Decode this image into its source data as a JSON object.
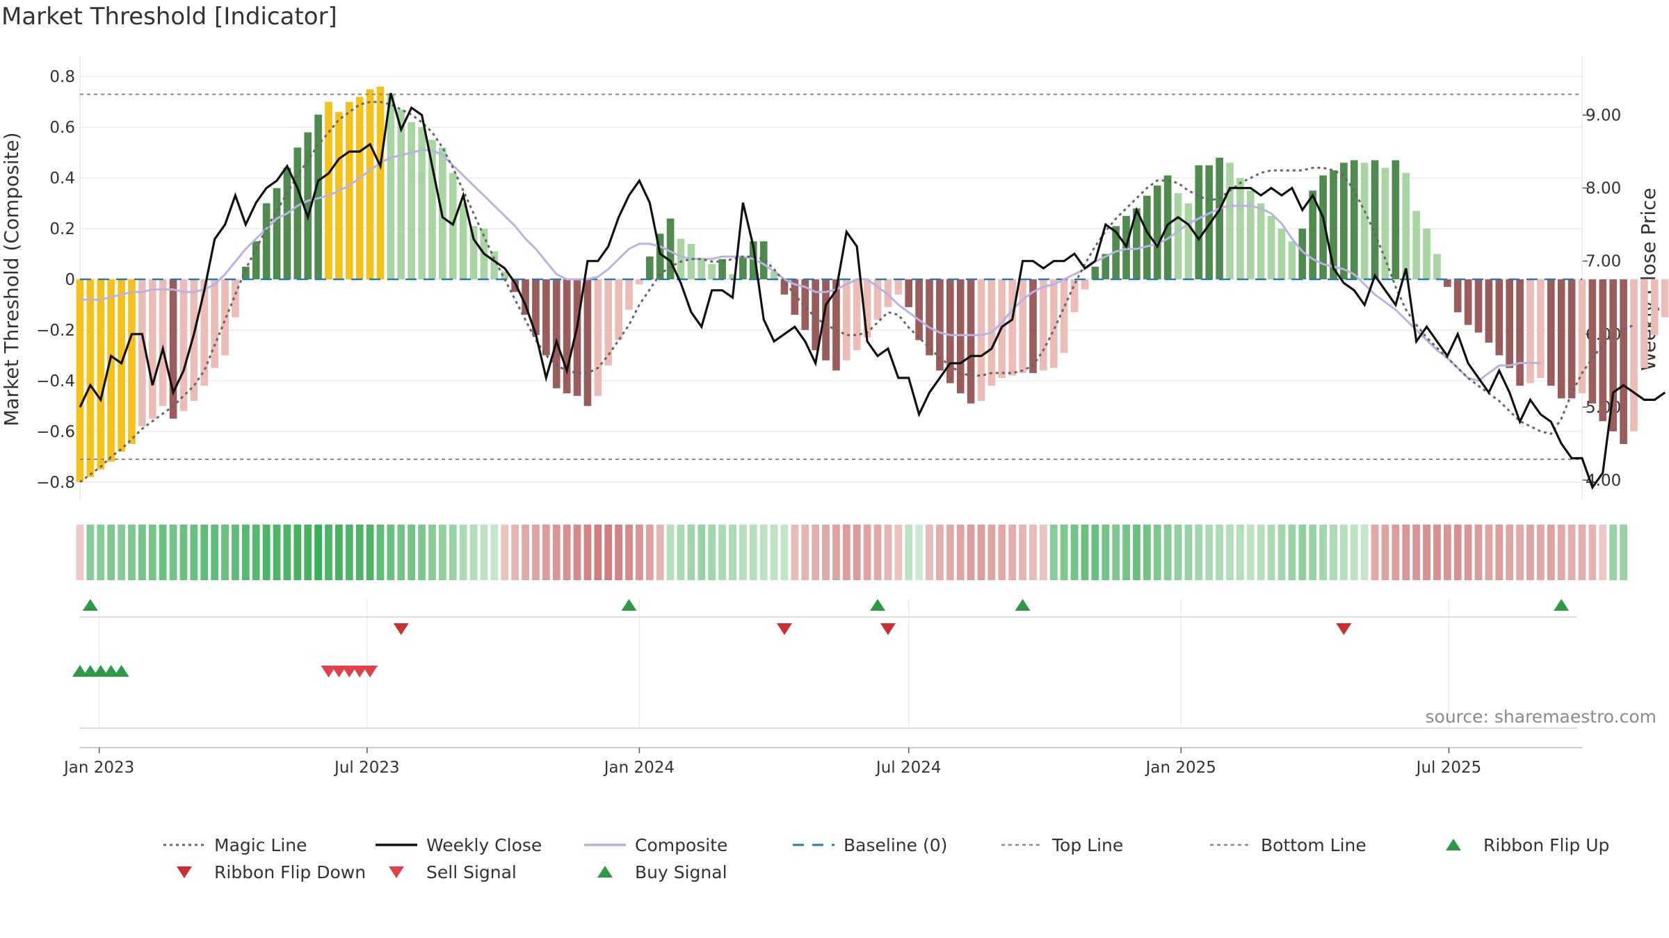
{
  "title": "Market Threshold [Indicator]",
  "source": "source: sharemaestro.com",
  "colors": {
    "background": "#ffffff",
    "grid": "#ececec",
    "yellow": "#f5c21b",
    "green_dark": "#4f8a4f",
    "green_light": "#a8d5a2",
    "red_dark": "#9b5c5c",
    "red_light": "#ecbdb7",
    "magic": "#666666",
    "close": "#111111",
    "composite": "#b9b3e3",
    "baseline": "#2a7ab0",
    "guide": "#888888",
    "flip_up": "#2e9a48",
    "flip_down": "#cc2f2f",
    "sell": "#e0404a",
    "buy": "#2e9a48"
  },
  "chart_data": {
    "type": "bar",
    "title": "Market Threshold [Indicator]",
    "ylabel_left": "Market Threshold (Composite)",
    "ylabel_right": "Weekly Close Price",
    "ylim_left": [
      -0.85,
      0.85
    ],
    "ylim_right": [
      3.8,
      9.7
    ],
    "yticks_left": [
      0.8,
      0.6,
      0.4,
      0.2,
      0,
      -0.2,
      -0.4,
      -0.6,
      -0.8
    ],
    "ytick_labels_left": [
      "0.8",
      "0.6",
      "0.4",
      "0.2",
      "0",
      "−0.2",
      "−0.4",
      "−0.6",
      "−0.8"
    ],
    "yticks_right": [
      9.0,
      8.0,
      7.0,
      6.0,
      5.0,
      4.0
    ],
    "ytick_labels_right": [
      "9.00",
      "8.00",
      "7.00",
      "6.00",
      "5.00",
      "4.00"
    ],
    "x_range": [
      "2022-12-19",
      "2025-09-29"
    ],
    "x_ticks": [
      "2023-01-01",
      "2023-07-01",
      "2024-01-01",
      "2024-07-01",
      "2025-01-01",
      "2025-07-01"
    ],
    "x_tick_labels": [
      "Jan 2023",
      "Jul 2023",
      "Jan 2024",
      "Jul 2024",
      "Jan 2025",
      "Jul 2025"
    ],
    "grid": true,
    "legend_position": "bottom",
    "top_line": 0.73,
    "bottom_line": -0.71,
    "baseline": 0,
    "series": [
      {
        "name": "Composite bars",
        "start": "2022-12-19",
        "interval": "weekly",
        "values": [
          -0.8,
          -0.78,
          -0.75,
          -0.72,
          -0.68,
          -0.65,
          -0.58,
          -0.55,
          -0.5,
          -0.55,
          -0.52,
          -0.48,
          -0.42,
          -0.35,
          -0.3,
          -0.15,
          0.05,
          0.15,
          0.3,
          0.36,
          0.44,
          0.52,
          0.58,
          0.65,
          0.7,
          0.66,
          0.7,
          0.72,
          0.75,
          0.76,
          0.73,
          0.67,
          0.62,
          0.6,
          0.55,
          0.52,
          0.42,
          0.3,
          0.21,
          0.2,
          0.11,
          0.03,
          -0.05,
          -0.14,
          -0.22,
          -0.3,
          -0.43,
          -0.45,
          -0.46,
          -0.5,
          -0.46,
          -0.34,
          -0.24,
          -0.12,
          -0.02,
          0.09,
          0.18,
          0.24,
          0.16,
          0.14,
          0.08,
          0.06,
          0.08,
          0.02,
          0.09,
          0.15,
          0.15,
          0.03,
          -0.06,
          -0.14,
          -0.2,
          -0.28,
          -0.32,
          -0.36,
          -0.32,
          -0.28,
          -0.23,
          -0.16,
          -0.11,
          -0.06,
          -0.11,
          -0.24,
          -0.3,
          -0.36,
          -0.41,
          -0.45,
          -0.49,
          -0.48,
          -0.42,
          -0.39,
          -0.38,
          -0.37,
          -0.37,
          -0.36,
          -0.35,
          -0.29,
          -0.13,
          -0.04,
          0.05,
          0.1,
          0.21,
          0.25,
          0.28,
          0.33,
          0.37,
          0.41,
          0.34,
          0.3,
          0.45,
          0.45,
          0.48,
          0.46,
          0.4,
          0.35,
          0.3,
          0.25,
          0.2,
          0.15,
          0.2,
          0.35,
          0.41,
          0.43,
          0.46,
          0.47,
          0.46,
          0.47,
          0.44,
          0.47,
          0.42,
          0.27,
          0.2,
          0.1,
          -0.03,
          -0.13,
          -0.18,
          -0.21,
          -0.25,
          -0.3,
          -0.35,
          -0.42,
          -0.41,
          -0.39,
          -0.42,
          -0.47,
          -0.47,
          -0.45,
          -0.49,
          -0.56,
          -0.6,
          -0.65,
          -0.6,
          -0.35,
          -0.22,
          -0.15,
          -0.12,
          -0.17,
          -0.18,
          -0.12
        ]
      },
      {
        "name": "Weekly Close",
        "start": "2022-12-19",
        "interval": "weekly",
        "values": [
          5.0,
          5.3,
          5.1,
          5.7,
          5.6,
          6.0,
          6.0,
          5.3,
          5.8,
          5.2,
          5.5,
          6.0,
          6.6,
          7.3,
          7.5,
          7.9,
          7.5,
          7.8,
          8.0,
          8.1,
          8.3,
          8.0,
          7.6,
          8.1,
          8.2,
          8.4,
          8.5,
          8.5,
          8.6,
          8.3,
          9.3,
          8.8,
          9.1,
          9.0,
          8.3,
          7.6,
          7.5,
          7.9,
          7.3,
          7.1,
          7.0,
          6.9,
          6.7,
          6.4,
          6.0,
          5.4,
          5.9,
          5.5,
          6.1,
          7.0,
          7.0,
          7.2,
          7.6,
          7.9,
          8.1,
          7.8,
          7.1,
          7.0,
          6.7,
          6.3,
          6.1,
          6.6,
          6.6,
          6.5,
          7.8,
          7.2,
          6.2,
          5.9,
          6.0,
          6.1,
          5.9,
          5.6,
          6.4,
          6.6,
          7.4,
          7.2,
          5.9,
          5.7,
          5.8,
          5.4,
          5.4,
          4.9,
          5.2,
          5.4,
          5.6,
          5.6,
          5.7,
          5.7,
          5.8,
          6.1,
          6.2,
          7.0,
          7.0,
          6.9,
          7.0,
          7.0,
          7.1,
          6.9,
          7.0,
          7.5,
          7.4,
          7.2,
          7.7,
          7.4,
          7.2,
          7.5,
          7.6,
          7.5,
          7.3,
          7.5,
          7.7,
          8.0,
          8.0,
          8.0,
          7.9,
          8.0,
          7.9,
          8.0,
          7.7,
          7.9,
          7.6,
          6.9,
          6.7,
          6.6,
          6.4,
          6.8,
          6.6,
          6.4,
          6.9,
          5.9,
          6.1,
          5.9,
          5.7,
          6.0,
          5.6,
          5.4,
          5.2,
          5.5,
          5.2,
          4.8,
          5.1,
          4.9,
          4.8,
          4.5,
          4.3,
          4.3,
          3.9,
          4.1,
          5.2,
          5.3,
          5.2,
          5.1,
          5.1,
          5.2
        ]
      },
      {
        "name": "Magic Line",
        "start": "2022-12-19",
        "interval": "weekly",
        "values": [
          -0.8,
          -0.77,
          -0.74,
          -0.7,
          -0.67,
          -0.63,
          -0.59,
          -0.56,
          -0.53,
          -0.5,
          -0.46,
          -0.42,
          -0.36,
          -0.26,
          -0.16,
          -0.06,
          0.04,
          0.12,
          0.2,
          0.27,
          0.34,
          0.41,
          0.47,
          0.53,
          0.58,
          0.63,
          0.66,
          0.69,
          0.7,
          0.7,
          0.69,
          0.67,
          0.65,
          0.62,
          0.58,
          0.52,
          0.44,
          0.35,
          0.26,
          0.17,
          0.08,
          0.0,
          -0.08,
          -0.16,
          -0.24,
          -0.3,
          -0.34,
          -0.36,
          -0.37,
          -0.37,
          -0.35,
          -0.3,
          -0.24,
          -0.18,
          -0.1,
          -0.04,
          0.02,
          0.05,
          0.07,
          0.08,
          0.08,
          0.07,
          0.07,
          0.08,
          0.09,
          0.09,
          0.08,
          0.04,
          -0.01,
          -0.06,
          -0.11,
          -0.15,
          -0.18,
          -0.2,
          -0.22,
          -0.22,
          -0.21,
          -0.17,
          -0.13,
          -0.14,
          -0.19,
          -0.23,
          -0.27,
          -0.31,
          -0.34,
          -0.37,
          -0.38,
          -0.38,
          -0.37,
          -0.37,
          -0.37,
          -0.36,
          -0.34,
          -0.28,
          -0.2,
          -0.11,
          -0.02,
          0.06,
          0.13,
          0.19,
          0.24,
          0.28,
          0.32,
          0.36,
          0.39,
          0.39,
          0.38,
          0.35,
          0.33,
          0.31,
          0.32,
          0.35,
          0.38,
          0.4,
          0.42,
          0.43,
          0.43,
          0.43,
          0.43,
          0.44,
          0.44,
          0.43,
          0.41,
          0.35,
          0.27,
          0.18,
          0.08,
          -0.03,
          -0.12,
          -0.18,
          -0.23,
          -0.27,
          -0.31,
          -0.35,
          -0.39,
          -0.42,
          -0.45,
          -0.48,
          -0.52,
          -0.56,
          -0.58,
          -0.6,
          -0.61,
          -0.55,
          -0.45,
          -0.37,
          -0.31,
          -0.26,
          -0.22,
          -0.2,
          -0.18
        ]
      },
      {
        "name": "Composite",
        "start": "2022-12-19",
        "interval": "weekly",
        "values": [
          -0.08,
          -0.08,
          -0.08,
          -0.07,
          -0.06,
          -0.05,
          -0.05,
          -0.04,
          -0.04,
          -0.04,
          -0.05,
          -0.05,
          -0.04,
          -0.02,
          0.02,
          0.07,
          0.12,
          0.16,
          0.2,
          0.24,
          0.26,
          0.29,
          0.31,
          0.32,
          0.33,
          0.35,
          0.37,
          0.4,
          0.43,
          0.46,
          0.48,
          0.49,
          0.5,
          0.51,
          0.51,
          0.49,
          0.45,
          0.41,
          0.37,
          0.33,
          0.29,
          0.25,
          0.21,
          0.16,
          0.12,
          0.07,
          0.02,
          0.0,
          0.0,
          0.0,
          0.01,
          0.04,
          0.08,
          0.12,
          0.14,
          0.14,
          0.13,
          0.11,
          0.09,
          0.08,
          0.08,
          0.08,
          0.09,
          0.09,
          0.09,
          0.08,
          0.06,
          0.03,
          0.0,
          -0.02,
          -0.03,
          -0.05,
          -0.05,
          -0.04,
          -0.02,
          0.0,
          0.0,
          -0.03,
          -0.06,
          -0.1,
          -0.13,
          -0.16,
          -0.19,
          -0.21,
          -0.22,
          -0.22,
          -0.22,
          -0.22,
          -0.21,
          -0.17,
          -0.12,
          -0.08,
          -0.05,
          -0.03,
          -0.02,
          0.0,
          0.02,
          0.04,
          0.07,
          0.09,
          0.11,
          0.12,
          0.12,
          0.13,
          0.14,
          0.16,
          0.19,
          0.22,
          0.24,
          0.26,
          0.28,
          0.29,
          0.29,
          0.29,
          0.28,
          0.26,
          0.22,
          0.16,
          0.11,
          0.08,
          0.06,
          0.05,
          0.04,
          0.02,
          -0.02,
          -0.06,
          -0.09,
          -0.12,
          -0.16,
          -0.2,
          -0.24,
          -0.28,
          -0.31,
          -0.35,
          -0.39,
          -0.4,
          -0.37,
          -0.34,
          -0.34,
          -0.33,
          -0.33,
          -0.33
        ]
      }
    ],
    "ribbon": {
      "start": "2022-12-19",
      "interval": "weekly",
      "values": [
        -0.2,
        0.55,
        0.55,
        0.6,
        0.55,
        0.6,
        0.65,
        0.65,
        0.7,
        0.65,
        0.7,
        0.7,
        0.75,
        0.75,
        0.7,
        0.75,
        0.8,
        0.8,
        0.85,
        0.85,
        0.85,
        0.9,
        0.9,
        0.95,
        0.85,
        0.9,
        0.85,
        0.85,
        0.85,
        0.75,
        0.7,
        0.65,
        0.65,
        0.6,
        0.55,
        0.5,
        0.45,
        0.35,
        0.3,
        0.25,
        0.2,
        -0.25,
        -0.35,
        -0.45,
        -0.5,
        -0.55,
        -0.6,
        -0.65,
        -0.7,
        -0.75,
        -0.8,
        -0.8,
        -0.75,
        -0.7,
        -0.6,
        -0.5,
        -0.35,
        0.3,
        0.35,
        0.4,
        0.45,
        0.4,
        0.35,
        0.35,
        0.3,
        0.3,
        0.25,
        0.25,
        0.2,
        -0.3,
        -0.35,
        -0.4,
        -0.45,
        -0.5,
        -0.55,
        -0.55,
        -0.5,
        -0.45,
        -0.35,
        -0.25,
        0.25,
        0.15,
        -0.3,
        -0.4,
        -0.45,
        -0.5,
        -0.55,
        -0.55,
        -0.5,
        -0.45,
        -0.4,
        -0.35,
        -0.3,
        -0.25,
        0.55,
        0.6,
        0.65,
        0.7,
        0.7,
        0.65,
        0.6,
        0.65,
        0.7,
        0.65,
        0.6,
        0.55,
        0.5,
        0.45,
        0.4,
        0.35,
        0.35,
        0.3,
        0.3,
        0.25,
        0.3,
        0.35,
        0.4,
        0.45,
        0.5,
        0.45,
        0.4,
        0.35,
        0.3,
        0.25,
        0.2,
        -0.45,
        -0.5,
        -0.55,
        -0.6,
        -0.6,
        -0.65,
        -0.65,
        -0.6,
        -0.65,
        -0.6,
        -0.55,
        -0.5,
        -0.55,
        -0.5,
        -0.45,
        -0.5,
        -0.45,
        -0.5,
        -0.45,
        -0.4,
        -0.4,
        -0.35,
        -0.2,
        0.45,
        0.45
      ]
    },
    "markers": {
      "ribbon_flip_up": [
        "2022-12-26",
        "2023-12-25",
        "2024-06-10",
        "2024-09-16",
        "2025-09-15"
      ],
      "ribbon_flip_down": [
        "2023-07-24",
        "2024-04-08",
        "2024-06-17",
        "2025-04-21"
      ],
      "buy_signal": [
        "2022-12-19",
        "2022-12-26",
        "2023-01-02",
        "2023-01-09",
        "2023-01-16"
      ],
      "sell_signal": [
        "2023-06-05",
        "2023-06-12",
        "2023-06-19",
        "2023-06-26",
        "2023-07-03"
      ]
    }
  },
  "legend": [
    {
      "label": "Magic Line",
      "kind": "dotted",
      "color": "#666666"
    },
    {
      "label": "Weekly Close",
      "kind": "solid",
      "color": "#111111"
    },
    {
      "label": "Composite",
      "kind": "solid-light",
      "color": "#b9b3e3"
    },
    {
      "label": "Baseline (0)",
      "kind": "dashed",
      "color": "#2a7ab0"
    },
    {
      "label": "Top Line",
      "kind": "dashed-grey",
      "color": "#888888"
    },
    {
      "label": "Bottom Line",
      "kind": "dashed-grey",
      "color": "#888888"
    },
    {
      "label": "Ribbon Flip Up",
      "kind": "tri-up",
      "color": "#2e9a48"
    },
    {
      "label": "Ribbon Flip Down",
      "kind": "tri-down",
      "color": "#cc2f2f"
    },
    {
      "label": "Sell Signal",
      "kind": "tri-down",
      "color": "#e0404a"
    },
    {
      "label": "Buy Signal",
      "kind": "tri-up",
      "color": "#2e9a48"
    }
  ]
}
